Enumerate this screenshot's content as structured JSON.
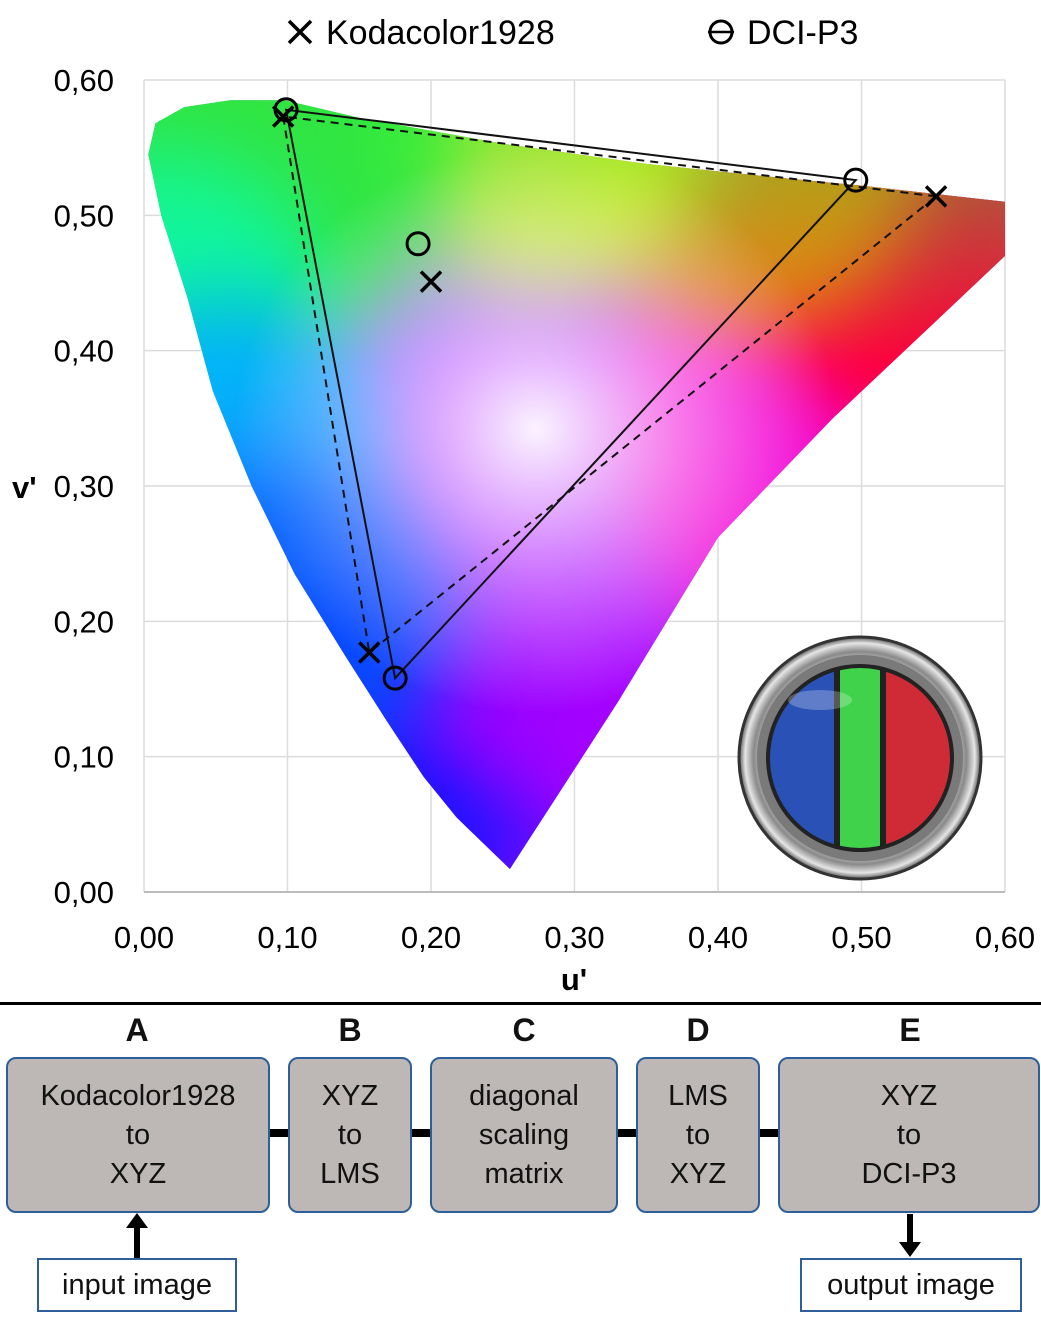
{
  "chart_data": {
    "type": "scatter",
    "title": "",
    "xlabel": "u'",
    "ylabel": "v'",
    "xlim": [
      0,
      0.6
    ],
    "ylim": [
      0,
      0.6
    ],
    "x_ticks": [
      "0,00",
      "0,10",
      "0,20",
      "0,30",
      "0,40",
      "0,50",
      "0,60"
    ],
    "y_ticks": [
      "0,00",
      "0,10",
      "0,20",
      "0,30",
      "0,40",
      "0,50",
      "0,60"
    ],
    "grid": true,
    "legend_position": "top",
    "series": [
      {
        "name": "Kodacolor1928",
        "marker": "x",
        "line": "dashed",
        "primaries": [
          {
            "name": "red",
            "u": 0.552,
            "v": 0.514
          },
          {
            "name": "green",
            "u": 0.097,
            "v": 0.573
          },
          {
            "name": "blue",
            "u": 0.157,
            "v": 0.177
          }
        ],
        "white_point": {
          "u": 0.2,
          "v": 0.451
        }
      },
      {
        "name": "DCI-P3",
        "marker": "o",
        "line": "solid",
        "primaries": [
          {
            "name": "red",
            "u": 0.496,
            "v": 0.526
          },
          {
            "name": "green",
            "u": 0.099,
            "v": 0.578
          },
          {
            "name": "blue",
            "u": 0.175,
            "v": 0.158
          }
        ],
        "white_point": {
          "u": 0.191,
          "v": 0.479
        }
      }
    ],
    "inset": "Kodacolor filter (blue, green, red bands)"
  },
  "pipeline": {
    "steps": [
      {
        "letter": "A",
        "text": "Kodacolor1928\nto\nXYZ"
      },
      {
        "letter": "B",
        "text": "XYZ\nto\nLMS"
      },
      {
        "letter": "C",
        "text": "diagonal\nscaling\nmatrix"
      },
      {
        "letter": "D",
        "text": "LMS\nto\nXYZ"
      },
      {
        "letter": "E",
        "text": "XYZ\nto\nDCI-P3"
      }
    ],
    "input_label": "input image",
    "output_label": "output image"
  }
}
